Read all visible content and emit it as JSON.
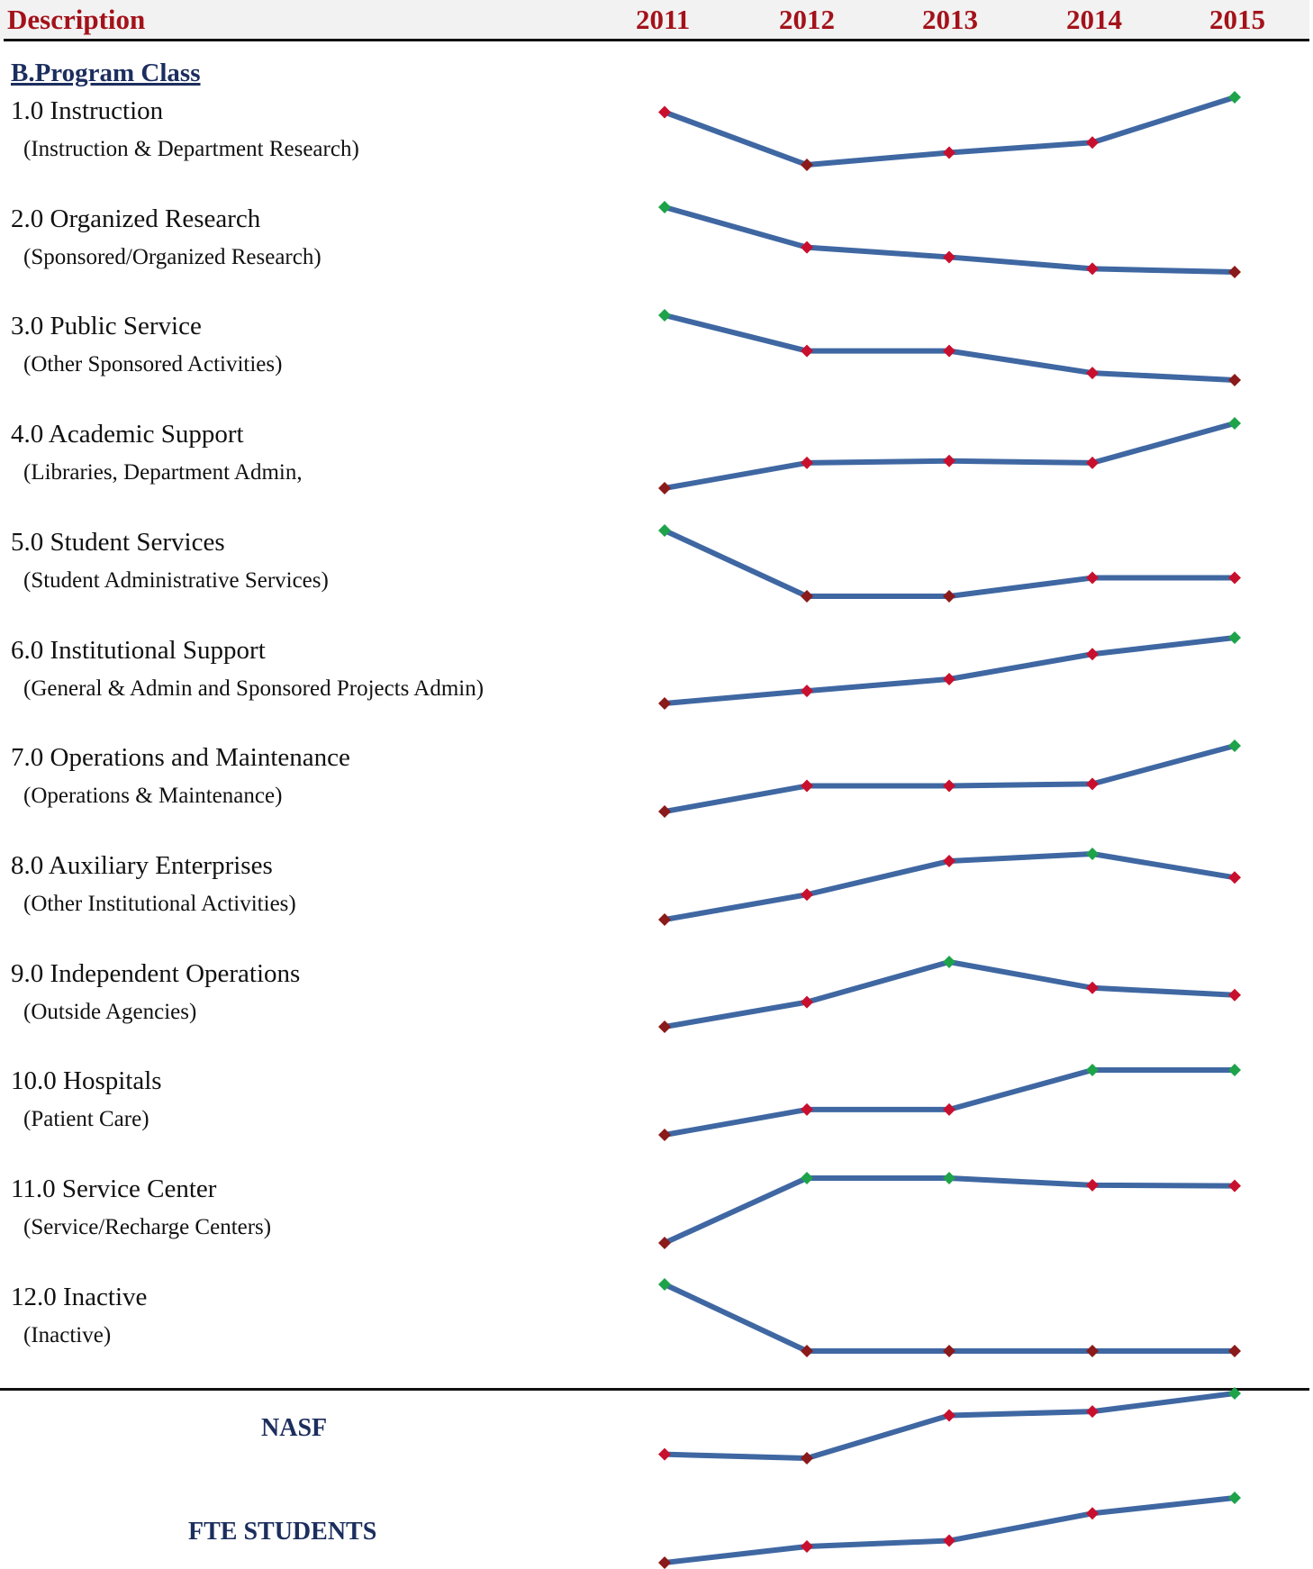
{
  "header": {
    "description": "Description",
    "years": [
      "2011",
      "2012",
      "2013",
      "2014",
      "2015"
    ]
  },
  "section_title": "B.Program Class",
  "rows": [
    {
      "label": "1.0 Instruction",
      "sub": "(Instruction & Department Research)"
    },
    {
      "label": "2.0 Organized Research",
      "sub": "(Sponsored/Organized Research)"
    },
    {
      "label": "3.0 Public Service",
      "sub": "(Other Sponsored Activities)"
    },
    {
      "label": "4.0 Academic Support",
      "sub": "(Libraries, Department Admin,"
    },
    {
      "label": "5.0 Student Services",
      "sub": "(Student Administrative Services)"
    },
    {
      "label": "6.0 Institutional Support",
      "sub": "(General & Admin and Sponsored Projects Admin)"
    },
    {
      "label": "7.0 Operations and Maintenance",
      "sub": "(Operations & Maintenance)"
    },
    {
      "label": "8.0 Auxiliary Enterprises",
      "sub": "(Other Institutional Activities)"
    },
    {
      "label": "9.0 Independent Operations",
      "sub": "(Outside Agencies)"
    },
    {
      "label": "10.0 Hospitals",
      "sub": "(Patient Care)"
    },
    {
      "label": "11.0 Service Center",
      "sub": "(Service/Recharge Centers)"
    },
    {
      "label": "12.0 Inactive",
      "sub": "(Inactive)"
    }
  ],
  "totals": [
    {
      "label": "NASF"
    },
    {
      "label": "FTE STUDENTS"
    }
  ],
  "colors": {
    "line": "#3f67a2",
    "marker": "#c8102e",
    "low": "#8b1a1a",
    "high": "#1ea34a",
    "title": "#a3121a",
    "section": "#1c2e5e"
  },
  "chart_data": {
    "type": "line",
    "x": [
      "2011",
      "2012",
      "2013",
      "2014",
      "2015"
    ],
    "note_scale": "each sparkline is scaled independently; values are relative (0 = series min, 100 = series max)",
    "series": [
      {
        "name": "1.0 Instruction",
        "values": [
          78,
          0,
          18,
          33,
          100
        ]
      },
      {
        "name": "2.0 Organized Research",
        "values": [
          100,
          38,
          23,
          5,
          0
        ]
      },
      {
        "name": "3.0 Public Service",
        "values": [
          100,
          45,
          45,
          11,
          0
        ]
      },
      {
        "name": "4.0 Academic Support",
        "values": [
          0,
          39,
          42,
          39,
          100
        ]
      },
      {
        "name": "5.0 Student Services",
        "values": [
          100,
          0,
          0,
          28,
          28
        ]
      },
      {
        "name": "6.0 Institutional Support",
        "values": [
          0,
          19,
          37,
          75,
          100
        ]
      },
      {
        "name": "7.0 Operations and Maintenance",
        "values": [
          0,
          39,
          39,
          42,
          100
        ]
      },
      {
        "name": "8.0 Auxiliary Enterprises",
        "values": [
          0,
          38,
          89,
          100,
          64
        ]
      },
      {
        "name": "9.0 Independent Operations",
        "values": [
          0,
          38,
          100,
          60,
          49
        ]
      },
      {
        "name": "10.0 Hospitals",
        "values": [
          0,
          39,
          39,
          100,
          100
        ]
      },
      {
        "name": "11.0 Service Center",
        "values": [
          0,
          100,
          100,
          89,
          88
        ]
      },
      {
        "name": "12.0 Inactive",
        "values": [
          100,
          0,
          0,
          0,
          0
        ]
      },
      {
        "name": "NASF",
        "values": [
          6,
          0,
          66,
          72,
          100
        ]
      },
      {
        "name": "FTE STUDENTS",
        "values": [
          0,
          25,
          34,
          76,
          100
        ]
      }
    ]
  }
}
